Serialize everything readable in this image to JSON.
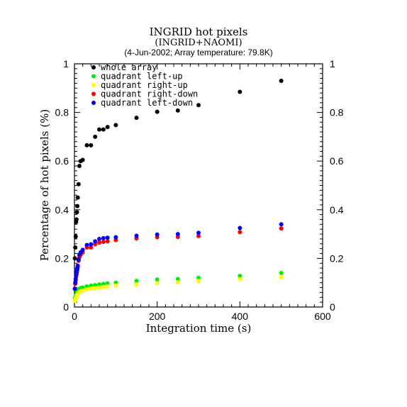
{
  "chart_data": {
    "type": "scatter",
    "title": "INGRID hot pixels",
    "subtitle": "(INGRID+NAOMI)",
    "subtitle2": "(4-Jun-2002; Array temperature: 79.8K)",
    "xlabel": "Integration time (s)",
    "ylabel": "Percentage of hot pixels (%)",
    "xlim": [
      0,
      600
    ],
    "ylim": [
      0,
      1
    ],
    "x_ticks": [
      0,
      200,
      400,
      600
    ],
    "y_ticks": [
      0,
      0.2,
      0.4,
      0.6,
      0.8,
      1
    ],
    "x_tick_labels": [
      "0",
      "200",
      "400",
      "600"
    ],
    "y_tick_labels": [
      "0",
      "0.2",
      "0.4",
      "0.6",
      "0.8",
      "1"
    ],
    "y_tick_labels_right": [
      "0",
      "0.2",
      "0.4",
      "0.6",
      "0.8",
      "1"
    ],
    "legend_position": "top-left",
    "grid": false,
    "series": [
      {
        "name": "whole array",
        "color": "#000000",
        "x": [
          1,
          2,
          3,
          4,
          5,
          6,
          7,
          8,
          10,
          12,
          15,
          20,
          30,
          40,
          50,
          60,
          70,
          80,
          100,
          150,
          200,
          250,
          300,
          400,
          500
        ],
        "y": [
          0.2,
          0.245,
          0.29,
          0.35,
          0.36,
          0.39,
          0.415,
          0.45,
          0.505,
          0.58,
          0.6,
          0.605,
          0.665,
          0.665,
          0.7,
          0.73,
          0.73,
          0.74,
          0.748,
          0.778,
          0.803,
          0.808,
          0.83,
          0.885,
          0.93
        ]
      },
      {
        "name": "quadrant left-up",
        "color": "#00ee00",
        "x": [
          1,
          2,
          3,
          4,
          5,
          6,
          7,
          8,
          10,
          12,
          15,
          20,
          30,
          40,
          50,
          60,
          70,
          80,
          100,
          150,
          200,
          250,
          300,
          400,
          500
        ],
        "y": [
          0.035,
          0.04,
          0.045,
          0.05,
          0.055,
          0.06,
          0.062,
          0.065,
          0.07,
          0.075,
          0.078,
          0.08,
          0.085,
          0.088,
          0.09,
          0.093,
          0.095,
          0.097,
          0.1,
          0.107,
          0.113,
          0.115,
          0.12,
          0.128,
          0.14
        ]
      },
      {
        "name": "quadrant right-up",
        "color": "#ffff00",
        "x": [
          1,
          2,
          3,
          4,
          5,
          6,
          7,
          8,
          10,
          12,
          15,
          20,
          30,
          40,
          50,
          60,
          70,
          80,
          100,
          150,
          200,
          250,
          300,
          400,
          500
        ],
        "y": [
          0.025,
          0.03,
          0.035,
          0.04,
          0.043,
          0.047,
          0.05,
          0.053,
          0.058,
          0.062,
          0.065,
          0.068,
          0.073,
          0.076,
          0.078,
          0.08,
          0.082,
          0.085,
          0.088,
          0.093,
          0.098,
          0.102,
          0.107,
          0.115,
          0.123
        ]
      },
      {
        "name": "quadrant right-down",
        "color": "#ff0000",
        "x": [
          1,
          2,
          3,
          4,
          5,
          6,
          7,
          8,
          10,
          12,
          15,
          20,
          30,
          40,
          50,
          60,
          70,
          80,
          100,
          150,
          200,
          250,
          300,
          400,
          500
        ],
        "y": [
          0.075,
          0.095,
          0.11,
          0.125,
          0.135,
          0.145,
          0.155,
          0.165,
          0.19,
          0.205,
          0.215,
          0.225,
          0.245,
          0.245,
          0.258,
          0.265,
          0.268,
          0.27,
          0.275,
          0.282,
          0.287,
          0.288,
          0.292,
          0.308,
          0.323
        ]
      },
      {
        "name": "quadrant left-down",
        "color": "#0000ff",
        "x": [
          1,
          2,
          3,
          4,
          5,
          6,
          7,
          8,
          10,
          12,
          15,
          20,
          30,
          40,
          50,
          60,
          70,
          80,
          100,
          150,
          200,
          250,
          300,
          400,
          500
        ],
        "y": [
          0.075,
          0.1,
          0.115,
          0.13,
          0.14,
          0.15,
          0.16,
          0.17,
          0.195,
          0.215,
          0.225,
          0.235,
          0.255,
          0.258,
          0.27,
          0.28,
          0.283,
          0.285,
          0.287,
          0.293,
          0.298,
          0.3,
          0.305,
          0.325,
          0.34
        ]
      }
    ]
  }
}
